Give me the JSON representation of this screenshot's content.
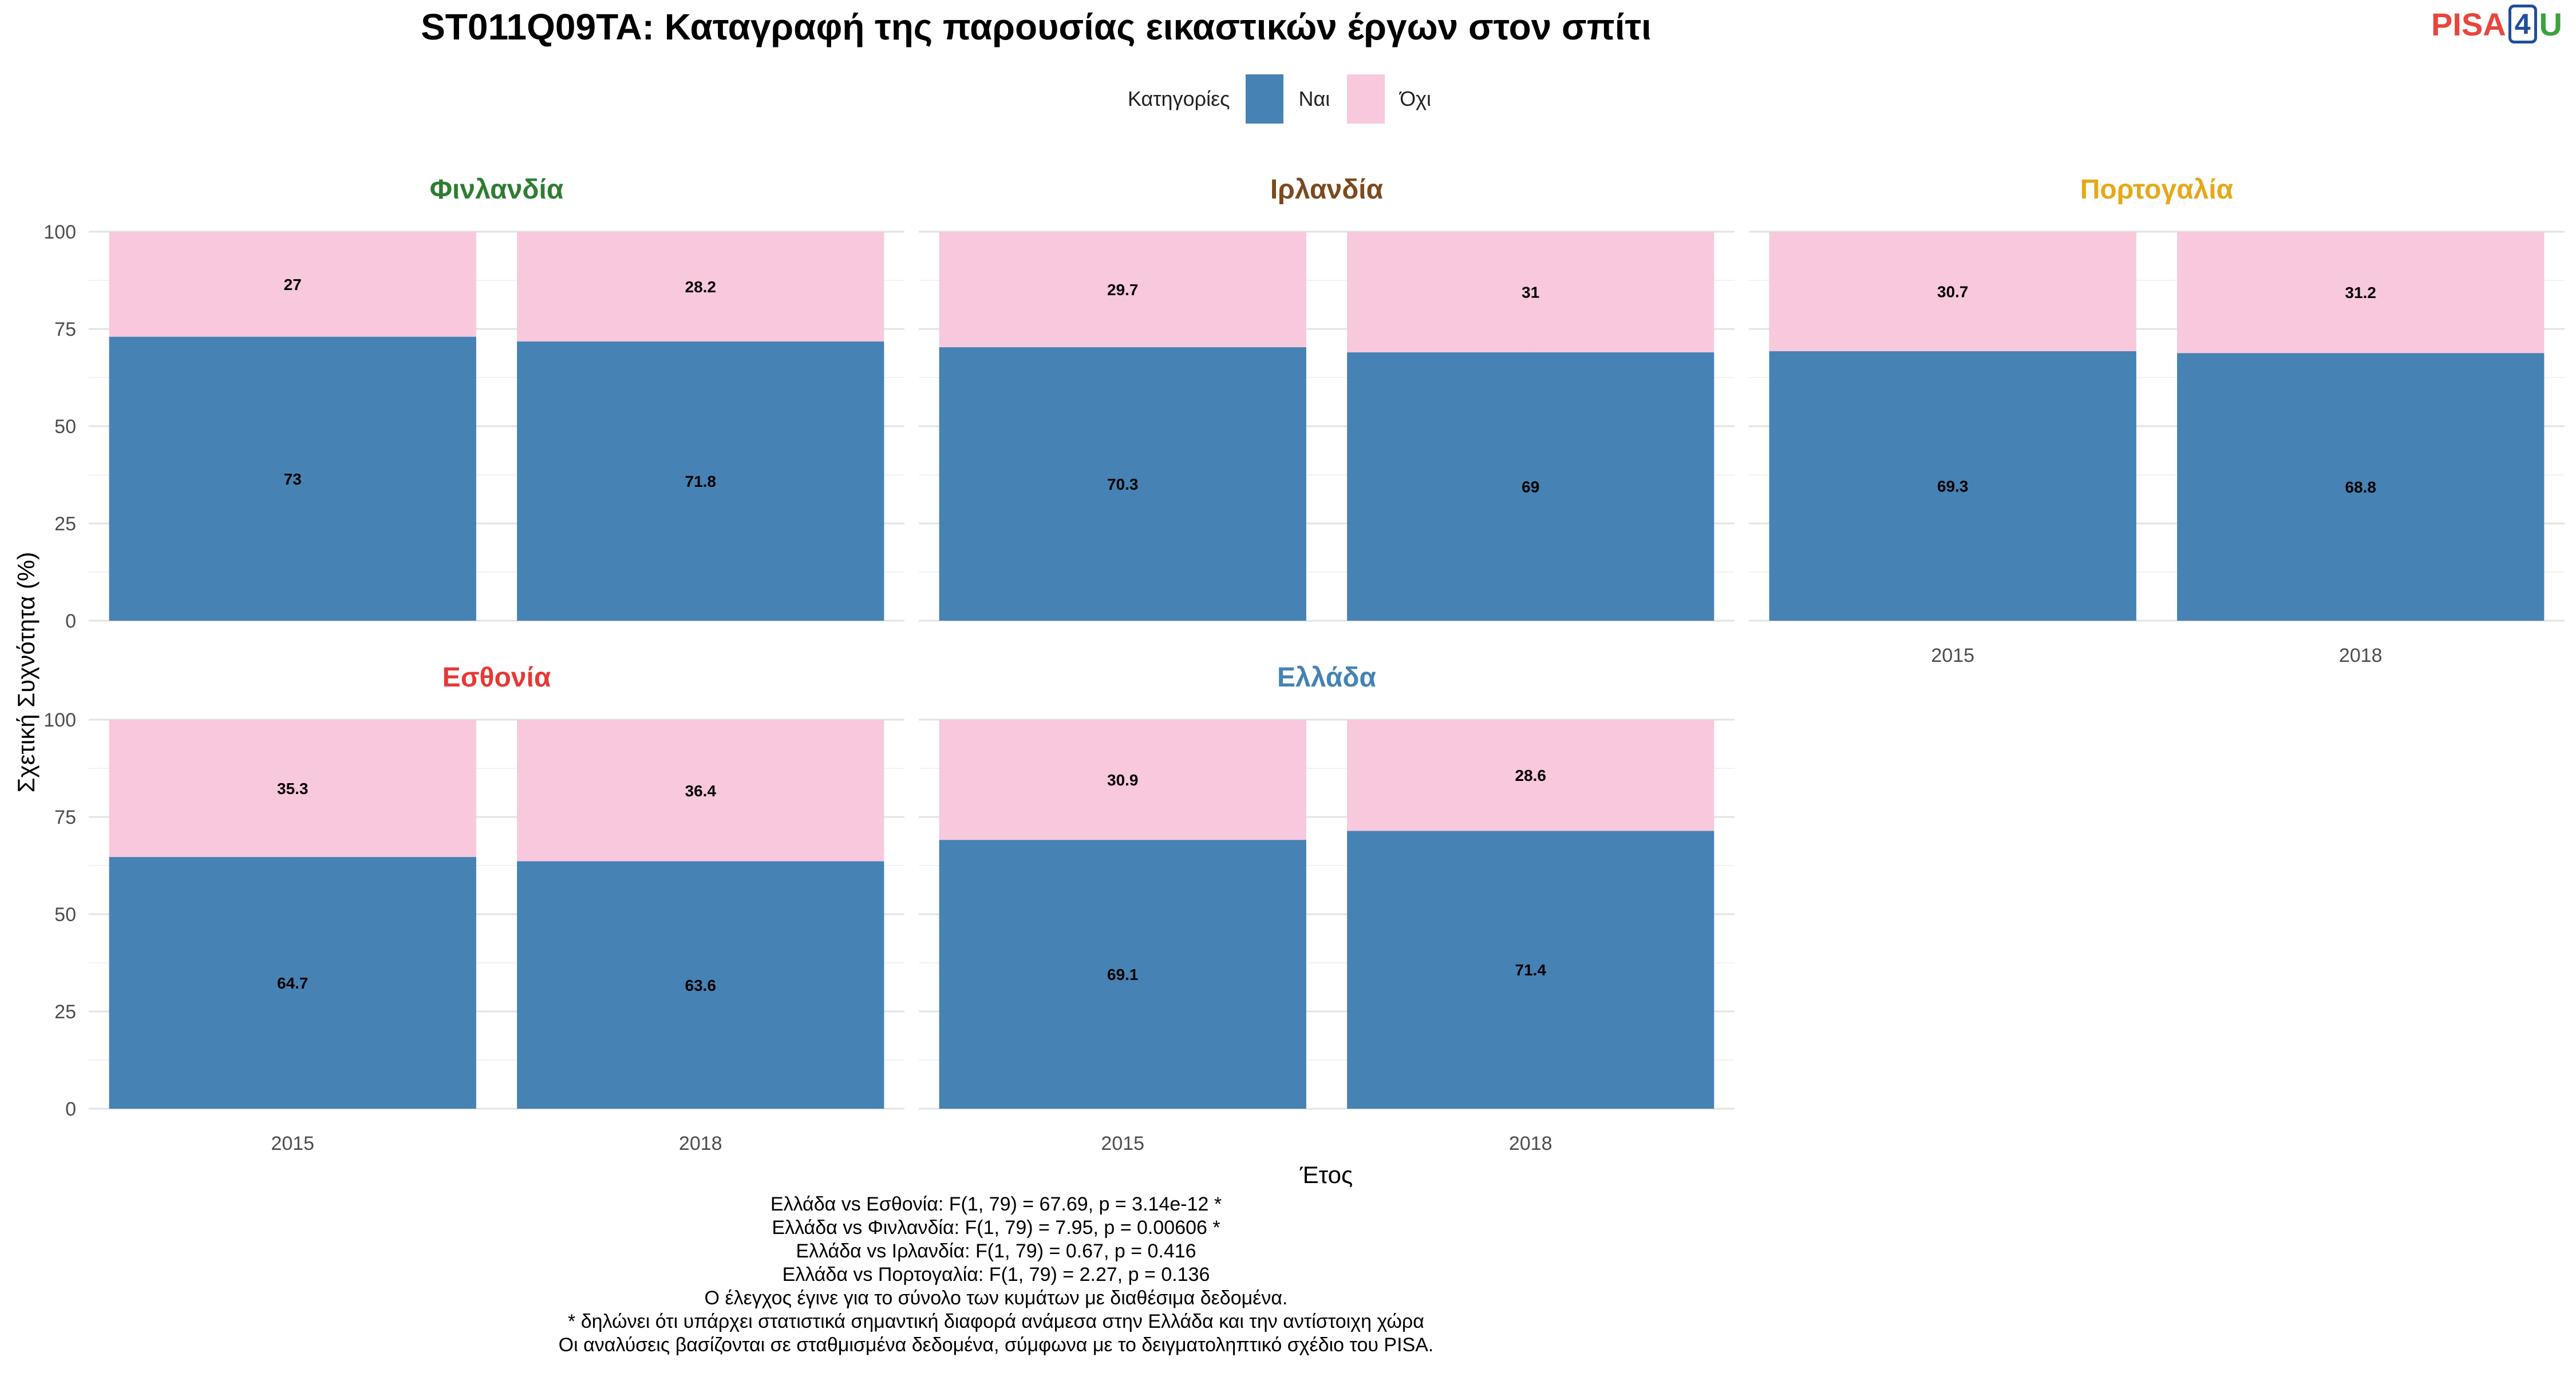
{
  "title": "ST011Q09TA: Καταγραφή της παρουσίας εικαστικών έργων στον σπίτι",
  "logo": {
    "part1": "PISA",
    "part2": "4",
    "part3": "U"
  },
  "legend": {
    "title": "Κατηγορίες",
    "items": [
      {
        "label": "Ναι",
        "color": "#4682B4"
      },
      {
        "label": "Όχι",
        "color": "#F8C8DC"
      }
    ]
  },
  "chart_data": {
    "type": "bar",
    "stacked": true,
    "xlabel": "Έτος",
    "ylabel": "Σχετική Συχνότητα (%)",
    "ylim": [
      0,
      100
    ],
    "yticks": [
      0,
      25,
      50,
      75,
      100
    ],
    "categories": [
      "2015",
      "2018"
    ],
    "series_names": [
      "Ναι",
      "Όχι"
    ],
    "series_colors": [
      "#4682B4",
      "#F8C8DC"
    ],
    "panels": [
      {
        "name": "Φινλανδία",
        "title_color": "#2e7d32",
        "yes": [
          73,
          71.8
        ],
        "no": [
          27,
          28.2
        ]
      },
      {
        "name": "Ιρλανδία",
        "title_color": "#7b4a1e",
        "yes": [
          70.3,
          69
        ],
        "no": [
          29.7,
          31
        ]
      },
      {
        "name": "Πορτογαλία",
        "title_color": "#e6a817",
        "yes": [
          69.3,
          68.8
        ],
        "no": [
          30.7,
          31.2
        ]
      },
      {
        "name": "Εσθονία",
        "title_color": "#e53935",
        "yes": [
          64.7,
          63.6
        ],
        "no": [
          35.3,
          36.4
        ]
      },
      {
        "name": "Ελλάδα",
        "title_color": "#4682B4",
        "yes": [
          69.1,
          71.4
        ],
        "no": [
          30.9,
          28.6
        ]
      }
    ]
  },
  "notes": [
    "Ελλάδα vs Εσθονία: F(1, 79) = 67.69, p = 3.14e-12 *",
    "Ελλάδα vs Φινλανδία: F(1, 79) = 7.95, p = 0.00606 *",
    "Ελλάδα vs Ιρλανδία: F(1, 79) = 0.67, p = 0.416",
    "Ελλάδα vs Πορτογαλία: F(1, 79) = 2.27, p = 0.136",
    "Ο έλεγχος έγινε για το σύνολο των κυμάτων με διαθέσιμα δεδομένα.",
    "* δηλώνει ότι υπάρχει στατιστικά σημαντική διαφορά ανάμεσα στην Ελλάδα και την αντίστοιχη χώρα",
    "Οι αναλύσεις βασίζονται σε σταθμισμένα δεδομένα, σύμφωνα με το δειγματοληπτικό σχέδιο του PISA."
  ]
}
